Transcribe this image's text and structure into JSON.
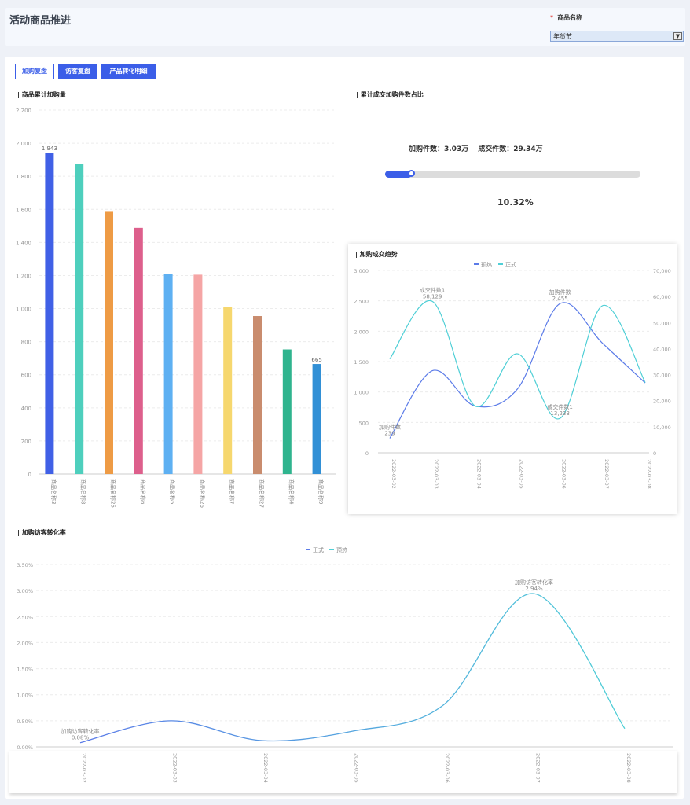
{
  "header": {
    "title": "活动商品推进",
    "filter_label": "商品名称",
    "filter_required": "*",
    "filter_value": "年货节"
  },
  "tabs": [
    {
      "label": "加购复盘",
      "active": true
    },
    {
      "label": "访客复盘",
      "active": false
    },
    {
      "label": "产品转化明细",
      "active": false
    }
  ],
  "colors": {
    "accent": "#3b5ee8",
    "blue_line": "#5b7be8",
    "cyan_line": "#4fcfd6"
  },
  "bar_section": {
    "title": "商品累计加购量"
  },
  "ratio_section": {
    "title": "累计成交加购件数占比",
    "add_label": "加购件数：3.03万",
    "deal_label": "成交件数：29.34万",
    "percent_text": "10.32%",
    "progress_fraction": 0.1032
  },
  "trend_section": {
    "title": "加购成交趋势",
    "legend": [
      "预热",
      "正式"
    ]
  },
  "rate_section": {
    "title": "加购访客转化率",
    "legend": [
      "正式",
      "预热"
    ]
  },
  "chart_data": [
    {
      "type": "bar",
      "title": "商品累计加购量",
      "categories": [
        "商品名称3",
        "商品名称8",
        "商品名称25",
        "商品名称6",
        "商品名称5",
        "商品名称26",
        "商品名称7",
        "商品名称27",
        "商品名称4",
        "商品名称9"
      ],
      "values": [
        1943,
        1876,
        1585,
        1488,
        1208,
        1205,
        1012,
        955,
        753,
        665
      ],
      "colors": [
        "#4060e6",
        "#4ecfbd",
        "#ee9b45",
        "#dd5f8c",
        "#5eb0f2",
        "#f5a5a5",
        "#f6d76e",
        "#c98c6e",
        "#2fb48e",
        "#3290d6"
      ],
      "data_labels": {
        "0": "1,943",
        "9": "665"
      },
      "ylim": [
        0,
        2200
      ],
      "yticks": [
        0,
        200,
        400,
        600,
        800,
        1000,
        1200,
        1400,
        1600,
        1800,
        2000,
        2200
      ],
      "ytick_labels": [
        "0",
        "200",
        "400",
        "600",
        "800",
        "1,000",
        "1,200",
        "1,400",
        "1,600",
        "1,800",
        "2,000",
        "2,200"
      ]
    },
    {
      "type": "line",
      "title": "加购成交趋势",
      "x": [
        "2022-03-02",
        "2022-03-03",
        "2022-03-04",
        "2022-03-05",
        "2022-03-06",
        "2022-03-07",
        "2022-03-08"
      ],
      "y_left": {
        "ylim": [
          0,
          3000
        ],
        "tick_labels": [
          "0",
          "500",
          "1,000",
          "1,500",
          "2,000",
          "2,500",
          "3,000"
        ]
      },
      "y_right": {
        "ylim": [
          0,
          70000
        ],
        "tick_labels": [
          "0",
          "10,000",
          "20,000",
          "30,000",
          "40,000",
          "50,000",
          "60,000",
          "70,000"
        ]
      },
      "series": [
        {
          "name": "预热",
          "label": "加购件数",
          "axis": "left",
          "values": [
            239,
            1350,
            770,
            1050,
            2455,
            1800,
            1150
          ],
          "annotations": [
            {
              "index": 0,
              "text": "加购件数",
              "value_text": "239"
            },
            {
              "index": 4,
              "text": "加购件数",
              "value_text": "2,455"
            }
          ]
        },
        {
          "name": "正式",
          "label": "成交件数",
          "axis": "right",
          "values": [
            36000,
            58129,
            18000,
            38000,
            13233,
            56500,
            27000
          ],
          "annotations": [
            {
              "index": 1,
              "text": "成交件数1",
              "value_text": "58,129"
            },
            {
              "index": 4,
              "text": "成交件数1",
              "value_text": "13,233"
            }
          ]
        }
      ]
    },
    {
      "type": "line",
      "title": "加购访客转化率",
      "x": [
        "2022-03-02",
        "2022-03-03",
        "2022-03-04",
        "2022-03-05",
        "2022-03-06",
        "2022-03-07",
        "2022-03-08"
      ],
      "ylim": [
        0,
        3.5
      ],
      "ytick_labels": [
        "0.00%",
        "0.50%",
        "1.00%",
        "1.50%",
        "2.00%",
        "2.50%",
        "3.00%",
        "3.50%"
      ],
      "series": [
        {
          "name": "正式",
          "values": [
            0.08,
            0.5,
            0.12,
            0.3,
            0.8,
            2.94,
            0.35
          ],
          "annotations": [
            {
              "index": 0,
              "text": "加购访客转化率",
              "value_text": "0.08%"
            },
            {
              "index": 5,
              "text": "加购访客转化率",
              "value_text": "2.94%"
            }
          ]
        }
      ]
    }
  ]
}
